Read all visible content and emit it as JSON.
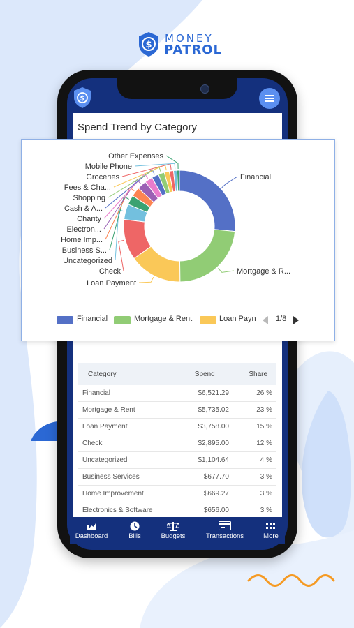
{
  "brand": {
    "line1": "MONEY",
    "line2": "PATROL",
    "color": "#2b68d4"
  },
  "card": {
    "title": "Spend Trend by Category"
  },
  "chart_data": {
    "type": "pie",
    "variant": "donut",
    "slices": [
      {
        "label": "Financial",
        "value": 6521.29,
        "color": "#5470c6"
      },
      {
        "label": "Mortgage & R...",
        "value": 5735.02,
        "color": "#91cc75"
      },
      {
        "label": "Loan Payment",
        "value": 3758.0,
        "color": "#fac858"
      },
      {
        "label": "Check",
        "value": 2895.0,
        "color": "#ee6666"
      },
      {
        "label": "Uncategorized",
        "value": 1104.64,
        "color": "#73c0de"
      },
      {
        "label": "Business S...",
        "value": 677.7,
        "color": "#3ba272"
      },
      {
        "label": "Home Imp...",
        "value": 669.27,
        "color": "#fc8452"
      },
      {
        "label": "Electron...",
        "value": 656.0,
        "color": "#9a60b4"
      },
      {
        "label": "Charity",
        "value": 560,
        "color": "#ea7ccc"
      },
      {
        "label": "Cash & A...",
        "value": 500,
        "color": "#5470c6"
      },
      {
        "label": "Shopping",
        "value": 430,
        "color": "#91cc75"
      },
      {
        "label": "Fees & Cha...",
        "value": 360,
        "color": "#fac858"
      },
      {
        "label": "Groceries",
        "value": 300,
        "color": "#ee6666"
      },
      {
        "label": "Mobile Phone",
        "value": 240,
        "color": "#73c0de"
      },
      {
        "label": "Other Expenses",
        "value": 180,
        "color": "#3ba272"
      }
    ],
    "legend": {
      "items": [
        {
          "label": "Financial",
          "color": "#5470c6"
        },
        {
          "label": "Mortgage & Rent",
          "color": "#91cc75"
        },
        {
          "label": "Loan Payn",
          "color": "#fac858"
        }
      ],
      "page": "1/8",
      "placement": "bottom"
    }
  },
  "table": {
    "headers": {
      "category": "Category",
      "spend": "Spend",
      "share": "Share"
    },
    "rows": [
      {
        "category": "Financial",
        "spend": "$6,521.29",
        "share": "26 %"
      },
      {
        "category": "Mortgage & Rent",
        "spend": "$5,735.02",
        "share": "23 %"
      },
      {
        "category": "Loan Payment",
        "spend": "$3,758.00",
        "share": "15 %"
      },
      {
        "category": "Check",
        "spend": "$2,895.00",
        "share": "12 %"
      },
      {
        "category": "Uncategorized",
        "spend": "$1,104.64",
        "share": "4 %"
      },
      {
        "category": "Business Services",
        "spend": "$677.70",
        "share": "3 %"
      },
      {
        "category": "Home Improvement",
        "spend": "$669.27",
        "share": "3 %"
      },
      {
        "category": "Electronics & Software",
        "spend": "$656.00",
        "share": "3 %"
      }
    ]
  },
  "nav": [
    {
      "label": "Dashboard",
      "icon": "chart-icon"
    },
    {
      "label": "Bills",
      "icon": "clock-icon"
    },
    {
      "label": "Budgets",
      "icon": "scale-icon"
    },
    {
      "label": "Transactions",
      "icon": "card-icon"
    },
    {
      "label": "More",
      "icon": "grid-icon"
    }
  ]
}
